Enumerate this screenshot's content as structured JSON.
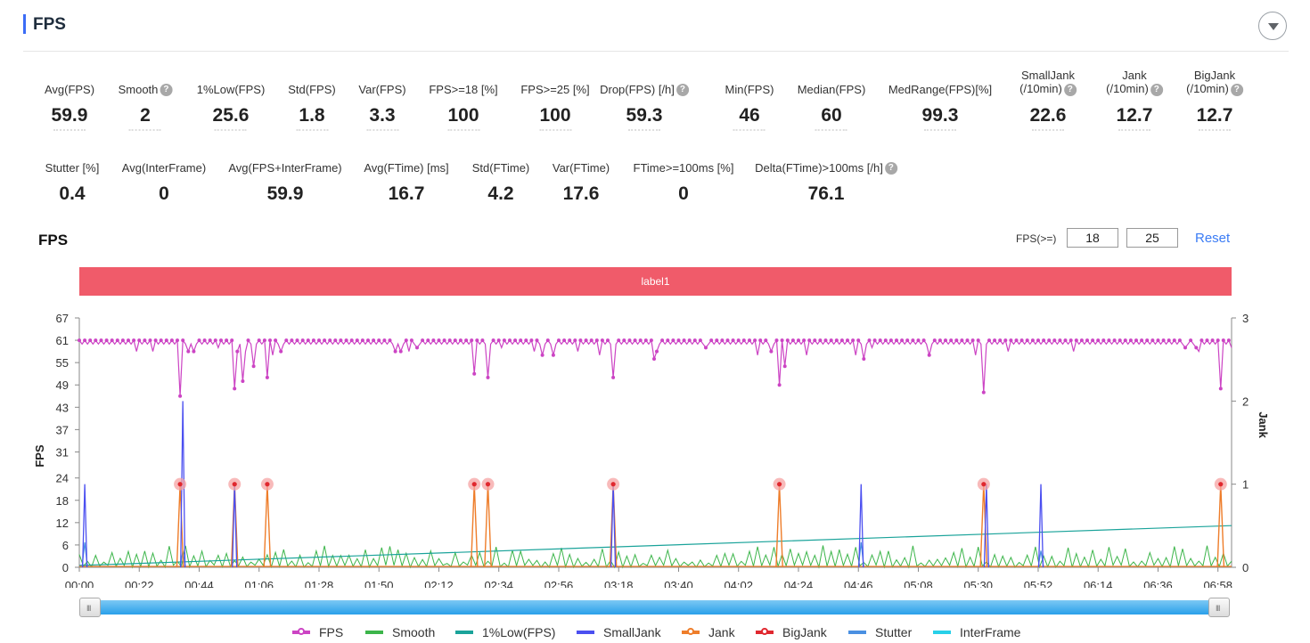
{
  "header": {
    "title": "FPS"
  },
  "metrics_row1": [
    {
      "label": "Avg(FPS)",
      "value": "59.9",
      "help": false
    },
    {
      "label": "Smooth",
      "value": "2",
      "help": true
    },
    {
      "label": "1%Low(FPS)",
      "value": "25.6",
      "help": false
    },
    {
      "label": "Std(FPS)",
      "value": "1.8",
      "help": false
    },
    {
      "label": "Var(FPS)",
      "value": "3.3",
      "help": false
    },
    {
      "label": "FPS>=18 [%]",
      "value": "100",
      "help": false
    },
    {
      "label": "FPS>=25 [%]",
      "value": "100",
      "help": false
    },
    {
      "label": "Drop(FPS) [/h]",
      "value": "59.3",
      "help": true
    },
    {
      "label": "Min(FPS)",
      "value": "46",
      "help": false
    },
    {
      "label": "Median(FPS)",
      "value": "60",
      "help": false
    },
    {
      "label": "MedRange(FPS)[%]",
      "value": "99.3",
      "help": false
    },
    {
      "label": "SmallJank",
      "label2": "(/10min)",
      "value": "22.6",
      "help": true
    },
    {
      "label": "Jank",
      "label2": "(/10min)",
      "value": "12.7",
      "help": true
    },
    {
      "label": "BigJank",
      "label2": "(/10min)",
      "value": "12.7",
      "help": true
    }
  ],
  "metrics_row2": [
    {
      "label": "Stutter [%]",
      "value": "0.4",
      "help": false
    },
    {
      "label": "Avg(InterFrame)",
      "value": "0",
      "help": false
    },
    {
      "label": "Avg(FPS+InterFrame)",
      "value": "59.9",
      "help": false
    },
    {
      "label": "Avg(FTime) [ms]",
      "value": "16.7",
      "help": false
    },
    {
      "label": "Std(FTime)",
      "value": "4.2",
      "help": false
    },
    {
      "label": "Var(FTime)",
      "value": "17.6",
      "help": false
    },
    {
      "label": "FTime>=100ms [%]",
      "value": "0",
      "help": false
    },
    {
      "label": "Delta(FTime)>100ms [/h]",
      "value": "76.1",
      "help": true
    }
  ],
  "chart": {
    "title": "FPS",
    "threshold_label": "FPS(>=)",
    "threshold_1": "18",
    "threshold_2": "25",
    "reset_label": "Reset",
    "band_label": "label1"
  },
  "colors": {
    "fps": "#cc44c4",
    "smooth": "#3cb54a",
    "low1": "#1aa39a",
    "smalljank": "#4b4ff0",
    "jank": "#ee7d2a",
    "bigjank": "#e0282f",
    "stutter": "#4a90e2",
    "interframe": "#28d0e8",
    "band": "#f05b6a",
    "accent": "#3b6cf6"
  },
  "chart_data": {
    "type": "line",
    "title": "",
    "xlabel": "",
    "ylabel": "FPS",
    "y2label": "Jank",
    "ylim": [
      0,
      67
    ],
    "y2lim": [
      0,
      3
    ],
    "yticks": [
      "0",
      "6",
      "12",
      "18",
      "24",
      "31",
      "37",
      "43",
      "49",
      "55",
      "61",
      "67"
    ],
    "y2ticks": [
      "0",
      "1",
      "2",
      "3"
    ],
    "xticks": [
      "00:00",
      "00:22",
      "00:44",
      "01:06",
      "01:28",
      "01:50",
      "02:12",
      "02:34",
      "02:56",
      "03:18",
      "03:40",
      "04:02",
      "04:24",
      "04:46",
      "05:08",
      "05:30",
      "05:52",
      "06:14",
      "06:36",
      "06:58"
    ],
    "x_range_seconds": [
      0,
      423
    ],
    "legend": "bottom",
    "series": [
      {
        "name": "FPS",
        "baseline": 60,
        "dips": [
          [
            37,
            46
          ],
          [
            57,
            48
          ],
          [
            60,
            50
          ],
          [
            64,
            54
          ],
          [
            69,
            51
          ],
          [
            145,
            52
          ],
          [
            150,
            51
          ],
          [
            196,
            51
          ],
          [
            211,
            56
          ],
          [
            257,
            49
          ],
          [
            259,
            54
          ],
          [
            288,
            56
          ],
          [
            332,
            47
          ],
          [
            419,
            48
          ]
        ]
      },
      {
        "name": "Smooth",
        "range": [
          0,
          6
        ]
      },
      {
        "name": "1%Low(FPS)",
        "start": 0.5,
        "end": 11.2
      },
      {
        "name": "SmallJank",
        "spikes": [
          [
            2,
            1
          ],
          [
            38,
            2
          ],
          [
            57,
            1
          ],
          [
            196,
            1
          ],
          [
            287,
            1
          ],
          [
            333,
            1
          ],
          [
            353,
            1
          ]
        ]
      },
      {
        "name": "Jank",
        "spikes": [
          [
            37,
            1
          ],
          [
            57,
            1
          ],
          [
            69,
            1
          ],
          [
            145,
            1
          ],
          [
            150,
            1
          ],
          [
            196,
            1
          ],
          [
            257,
            1
          ],
          [
            332,
            1
          ],
          [
            419,
            1
          ]
        ]
      },
      {
        "name": "BigJank",
        "markers": [
          37,
          57,
          69,
          145,
          150,
          196,
          257,
          332,
          419
        ]
      },
      {
        "name": "Stutter",
        "spikes": [
          [
            2,
            0.3
          ],
          [
            38,
            0.2
          ],
          [
            287,
            0.3
          ],
          [
            353,
            0.2
          ]
        ]
      },
      {
        "name": "InterFrame",
        "values": [
          0
        ]
      }
    ]
  },
  "slider": {
    "left_grip": "III",
    "right_grip": "III"
  }
}
